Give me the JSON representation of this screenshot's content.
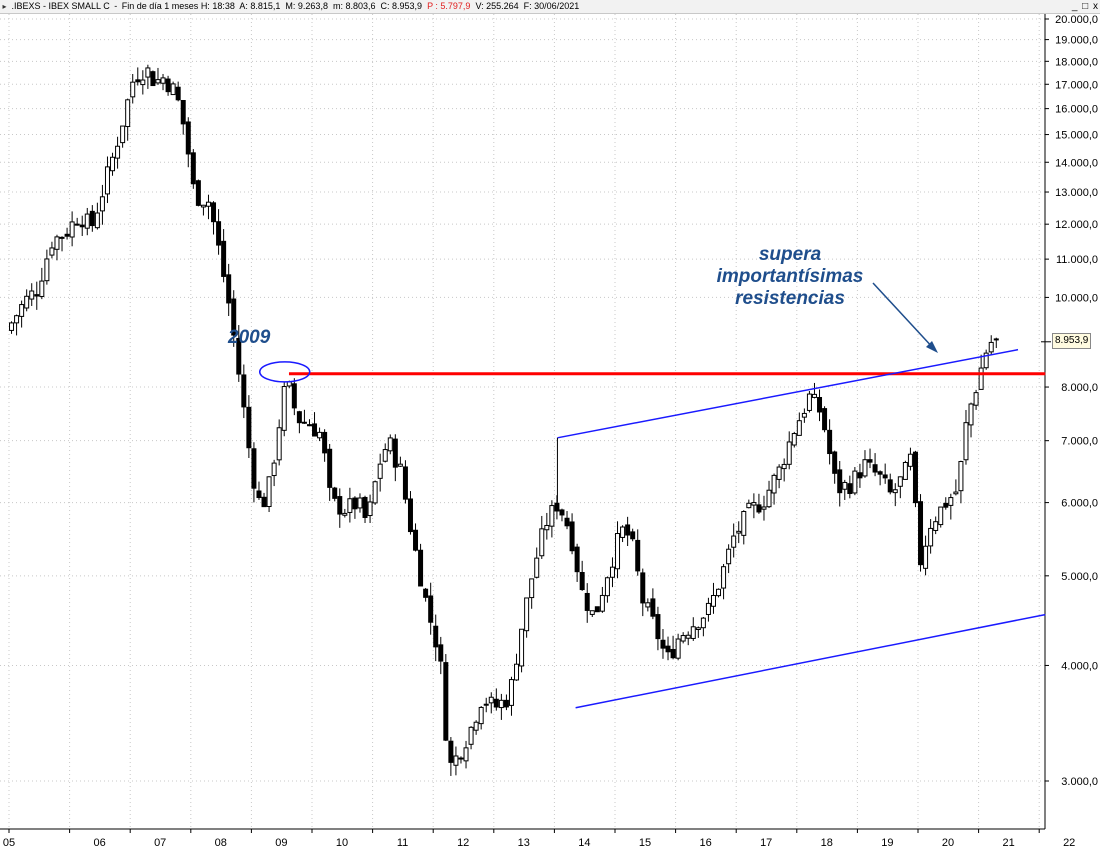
{
  "header": {
    "symbol": ".IBEXS - IBEX SMALL C",
    "timeframe": "Fin de día 1 meses",
    "h": "H: 18:38",
    "a": "A: 8.815,1",
    "m_max": "M: 9.263,8",
    "m_min": "m: 8.803,6",
    "c": "C: 8.953,9",
    "p": "P : 5.797,9",
    "v": "V: 255.264",
    "f": "F: 30/06/2021",
    "window_buttons": [
      "_",
      "□",
      "x"
    ]
  },
  "annotations": {
    "label_2009": "2009",
    "supera_lines": [
      "supera",
      "importantísimas",
      "resistencias"
    ]
  },
  "last_price_label": "8.953,9",
  "colors": {
    "background": "#ffffff",
    "bull_candle": "#ffffff",
    "bear_candle": "#000000",
    "resistance_line": "#ff0000",
    "channel_line": "#1a1aff",
    "annotation_text": "#1f4e8c",
    "grid": "#c8c8c8"
  },
  "chart_data": {
    "type": "candlestick",
    "title": ".IBEXS - IBEX SMALL C",
    "y_scale": "log",
    "ylim": [
      2650,
      20000
    ],
    "xlim": [
      2005.0,
      2022.3
    ],
    "grid": true,
    "y_ticks": [
      3000,
      4000,
      5000,
      6000,
      7000,
      8000,
      10000,
      11000,
      12000,
      13000,
      14000,
      15000,
      16000,
      17000,
      18000,
      19000,
      20000
    ],
    "y_tick_labels": [
      "3.000,0",
      "4.000,0",
      "5.000,0",
      "6.000,0",
      "7.000,0",
      "8.000,0",
      "10.000,0",
      "11.000,0",
      "12.000,0",
      "13.000,0",
      "14.000,0",
      "15.000,0",
      "16.000,0",
      "17.000,0",
      "18.000,0",
      "19.000,0",
      "20.000,0"
    ],
    "x_ticks": [
      2005,
      2006,
      2007,
      2008,
      2009,
      2010,
      2011,
      2012,
      2013,
      2014,
      2015,
      2016,
      2017,
      2018,
      2019,
      2020,
      2021,
      2022
    ],
    "x_tick_labels": [
      "05",
      "06",
      "07",
      "08",
      "09",
      "10",
      "11",
      "12",
      "13",
      "14",
      "15",
      "16",
      "17",
      "18",
      "19",
      "20",
      "21",
      "22"
    ],
    "path_points": [
      [
        2005.0,
        9200
      ],
      [
        2005.3,
        9900
      ],
      [
        2005.5,
        10200
      ],
      [
        2005.75,
        11500
      ],
      [
        2006.0,
        11800
      ],
      [
        2006.2,
        12300
      ],
      [
        2006.4,
        11900
      ],
      [
        2006.6,
        13100
      ],
      [
        2006.8,
        14500
      ],
      [
        2006.95,
        15800
      ],
      [
        2007.1,
        17300
      ],
      [
        2007.3,
        17700
      ],
      [
        2007.45,
        17100
      ],
      [
        2007.6,
        17300
      ],
      [
        2007.8,
        16600
      ],
      [
        2007.95,
        15100
      ],
      [
        2008.1,
        12900
      ],
      [
        2008.35,
        12700
      ],
      [
        2008.5,
        11300
      ],
      [
        2008.7,
        9600
      ],
      [
        2008.9,
        7700
      ],
      [
        2009.05,
        6500
      ],
      [
        2009.2,
        5900
      ],
      [
        2009.35,
        6300
      ],
      [
        2009.5,
        7300
      ],
      [
        2009.62,
        8150
      ],
      [
        2009.8,
        7400
      ],
      [
        2010.0,
        7300
      ],
      [
        2010.2,
        7100
      ],
      [
        2010.35,
        6000
      ],
      [
        2010.6,
        5900
      ],
      [
        2010.8,
        6000
      ],
      [
        2010.95,
        5700
      ],
      [
        2011.15,
        6600
      ],
      [
        2011.3,
        7000
      ],
      [
        2011.5,
        6500
      ],
      [
        2011.7,
        5500
      ],
      [
        2011.95,
        4600
      ],
      [
        2012.15,
        4100
      ],
      [
        2012.3,
        3100
      ],
      [
        2012.45,
        3200
      ],
      [
        2012.65,
        3400
      ],
      [
        2012.85,
        3700
      ],
      [
        2013.05,
        3600
      ],
      [
        2013.3,
        3700
      ],
      [
        2013.5,
        4400
      ],
      [
        2013.7,
        5100
      ],
      [
        2013.9,
        5700
      ],
      [
        2014.1,
        6000
      ],
      [
        2014.3,
        5600
      ],
      [
        2014.5,
        4800
      ],
      [
        2014.7,
        4500
      ],
      [
        2014.9,
        5000
      ],
      [
        2015.15,
        5600
      ],
      [
        2015.3,
        5500
      ],
      [
        2015.5,
        4700
      ],
      [
        2015.7,
        4400
      ],
      [
        2015.9,
        4050
      ],
      [
        2016.1,
        4300
      ],
      [
        2016.35,
        4450
      ],
      [
        2016.6,
        4600
      ],
      [
        2016.8,
        5000
      ],
      [
        2017.0,
        5500
      ],
      [
        2017.25,
        5850
      ],
      [
        2017.5,
        6050
      ],
      [
        2017.75,
        6500
      ],
      [
        2018.0,
        7200
      ],
      [
        2018.25,
        7800
      ],
      [
        2018.45,
        7500
      ],
      [
        2018.7,
        6200
      ],
      [
        2018.95,
        6300
      ],
      [
        2019.15,
        6600
      ],
      [
        2019.4,
        6400
      ],
      [
        2019.6,
        6100
      ],
      [
        2019.8,
        6400
      ],
      [
        2019.95,
        6750
      ],
      [
        2020.05,
        5100
      ],
      [
        2020.25,
        5700
      ],
      [
        2020.5,
        6000
      ],
      [
        2020.7,
        6200
      ],
      [
        2020.85,
        7400
      ],
      [
        2021.0,
        8000
      ],
      [
        2021.15,
        8700
      ],
      [
        2021.25,
        8950
      ]
    ],
    "lines": [
      {
        "name": "resistance_2009",
        "color": "red",
        "points": [
          [
            2009.62,
            8270
          ],
          [
            2022.1,
            8270
          ]
        ]
      },
      {
        "name": "channel_upper",
        "color": "blue",
        "points": [
          [
            2014.05,
            7050
          ],
          [
            2021.65,
            8780
          ]
        ]
      },
      {
        "name": "channel_lower",
        "color": "blue",
        "points": [
          [
            2014.35,
            3600
          ],
          [
            2022.1,
            4540
          ]
        ]
      }
    ],
    "last_close": 8953.9
  }
}
